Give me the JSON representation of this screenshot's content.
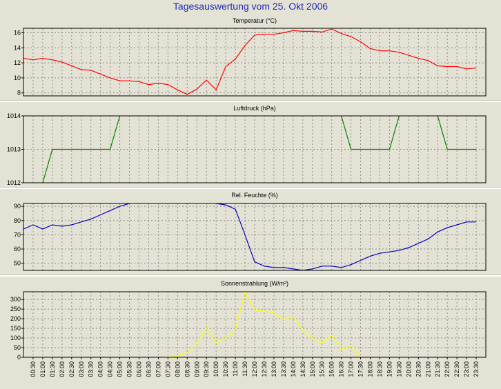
{
  "title": "Tagesauswertung vom 25. Okt 2006",
  "chart_data": [
    {
      "type": "line",
      "title": "Temperatur (°C)",
      "color": "#ff0000",
      "ylim": [
        7.6,
        16.6
      ],
      "yticks": [
        8,
        10,
        12,
        14,
        16
      ],
      "x": [
        0,
        0.5,
        1,
        1.5,
        2,
        2.5,
        3,
        3.5,
        4,
        4.5,
        5,
        5.5,
        6,
        6.5,
        7,
        7.5,
        8,
        8.5,
        9,
        9.5,
        10,
        10.5,
        11,
        11.5,
        12,
        12.5,
        13,
        13.5,
        14,
        14.5,
        15,
        15.5,
        16,
        16.5,
        17,
        17.5,
        18,
        18.5,
        19,
        19.5,
        20,
        20.5,
        21,
        21.5,
        22,
        22.5,
        23,
        23.5
      ],
      "values": [
        12.6,
        12.4,
        12.6,
        12.4,
        12.1,
        11.6,
        11.1,
        11.0,
        10.5,
        10.0,
        9.6,
        9.6,
        9.5,
        9.1,
        9.3,
        9.1,
        8.4,
        7.8,
        8.5,
        9.7,
        8.4,
        11.5,
        12.5,
        14.3,
        15.7,
        15.8,
        15.8,
        16.0,
        16.3,
        16.2,
        16.2,
        16.1,
        16.5,
        15.9,
        15.5,
        14.8,
        13.9,
        13.6,
        13.6,
        13.4,
        13.0,
        12.6,
        12.3,
        11.6,
        11.5,
        11.5,
        11.2,
        11.3
      ]
    },
    {
      "type": "line",
      "title": "Luftdruck (hPa)",
      "color": "#008000",
      "ylim": [
        1012,
        1014
      ],
      "yticks": [
        1012,
        1013,
        1014
      ],
      "x": [
        0,
        0.5,
        1,
        1.5,
        2,
        2.5,
        3,
        3.5,
        4,
        4.5,
        5,
        5.5,
        6,
        6.5,
        7,
        7.5,
        8,
        8.5,
        9,
        9.5,
        10,
        10.5,
        11,
        11.5,
        12,
        12.5,
        13,
        13.5,
        14,
        14.5,
        15,
        15.5,
        16,
        16.5,
        17,
        17.5,
        18,
        18.5,
        19,
        19.5,
        20,
        20.5,
        21,
        21.5,
        22,
        22.5,
        23,
        23.5
      ],
      "values": [
        1011.5,
        1011.5,
        1012,
        1013,
        1013,
        1013,
        1013,
        1013,
        1013,
        1013,
        1014,
        1014.5,
        1014.5,
        1014.5,
        1014.5,
        1014.5,
        1014.5,
        1014.5,
        1014.5,
        1014.5,
        1014.5,
        1014.5,
        1014.5,
        1014.5,
        1014.5,
        1014.5,
        1014.5,
        1014.5,
        1014.5,
        1014.5,
        1014.5,
        1014.5,
        1014.5,
        1014,
        1013,
        1013,
        1013,
        1013,
        1013,
        1014,
        1014.5,
        1014.5,
        1014.5,
        1014,
        1013,
        1013,
        1013,
        1013
      ]
    },
    {
      "type": "line",
      "title": "Rel. Feuchte (%)",
      "color": "#0000c8",
      "ylim": [
        45,
        92
      ],
      "yticks": [
        50,
        60,
        70,
        80,
        90
      ],
      "x": [
        0,
        0.5,
        1,
        1.5,
        2,
        2.5,
        3,
        3.5,
        4,
        4.5,
        5,
        5.5,
        6,
        6.5,
        7,
        7.5,
        8,
        8.5,
        9,
        9.5,
        10,
        10.5,
        11,
        11.5,
        12,
        12.5,
        13,
        13.5,
        14,
        14.5,
        15,
        15.5,
        16,
        16.5,
        17,
        17.5,
        18,
        18.5,
        19,
        19.5,
        20,
        20.5,
        21,
        21.5,
        22,
        22.5,
        23,
        23.5
      ],
      "values": [
        74,
        77,
        74,
        77,
        76,
        77,
        79,
        81,
        84,
        87,
        90,
        92,
        93,
        94,
        95,
        95,
        95,
        95,
        94,
        93,
        92,
        91,
        88,
        70,
        51,
        48,
        47,
        47,
        46,
        45,
        46,
        48,
        48,
        47,
        49,
        52,
        55,
        57,
        58,
        59,
        61,
        64,
        67,
        72,
        75,
        77,
        79,
        79
      ]
    },
    {
      "type": "line",
      "title": "Sonnenstrahlung (W/m²)",
      "color": "#ffff00",
      "ylim": [
        0,
        340
      ],
      "yticks": [
        0,
        50,
        100,
        150,
        200,
        250,
        300
      ],
      "x": [
        7,
        7.5,
        8,
        8.5,
        9,
        9.5,
        10,
        10.5,
        11,
        11.5,
        12,
        12.5,
        13,
        13.5,
        14,
        14.5,
        15,
        15.5,
        16,
        16.5,
        17,
        17.5,
        18
      ],
      "values": [
        0,
        0,
        5,
        25,
        70,
        150,
        75,
        100,
        145,
        340,
        245,
        240,
        230,
        195,
        210,
        140,
        100,
        75,
        115,
        40,
        60,
        0,
        0
      ]
    }
  ],
  "x_ticks": [
    "00:30",
    "01:00",
    "01:30",
    "02:00",
    "02:30",
    "03:00",
    "03:30",
    "04:00",
    "04:30",
    "05:00",
    "05:30",
    "06:00",
    "06:30",
    "07:00",
    "07:30",
    "08:00",
    "08:30",
    "09:00",
    "09:30",
    "10:00",
    "10:30",
    "11:00",
    "11:30",
    "12:00",
    "12:30",
    "13:00",
    "13:30",
    "14:00",
    "14:30",
    "15:00",
    "15:30",
    "16:00",
    "16:30",
    "17:00",
    "17:30",
    "18:00",
    "18:30",
    "19:00",
    "19:30",
    "20:00",
    "20:30",
    "21:00",
    "21:30",
    "22:00",
    "22:30",
    "23:00",
    "23:30"
  ]
}
